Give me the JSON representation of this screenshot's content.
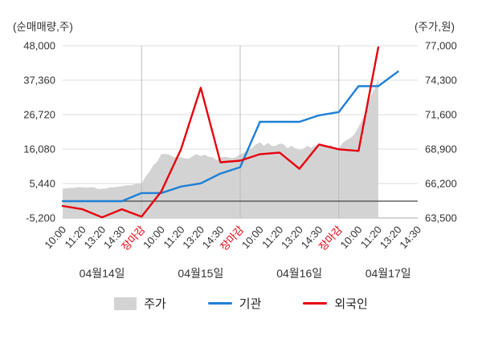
{
  "chart_data": {
    "type": "mixed",
    "title": "",
    "left_axis": {
      "label": "(순매매량,주)",
      "min": -5200,
      "max": 48000,
      "ticks": [
        48000,
        37360,
        26720,
        16080,
        5440,
        -5200
      ]
    },
    "right_axis": {
      "label": "(주가,원)",
      "min": 63500,
      "max": 77000,
      "ticks": [
        77000,
        74300,
        71600,
        68900,
        66200,
        63500
      ]
    },
    "x_labels": [
      "10:00",
      "11:20",
      "13:20",
      "14:30",
      "장마감",
      "10:00",
      "11:20",
      "13:20",
      "14:30",
      "장마감",
      "10:00",
      "11:20",
      "13:20",
      "14:30",
      "장마감",
      "10:00",
      "11:20",
      "13:20",
      "14:30"
    ],
    "closing_label": "장마감",
    "tick_color": "#333333",
    "closing_tick_color": "#e8000d",
    "grid_color": "#dddddd",
    "separator_color": "#bbbbbb",
    "zero_line_color": "#444444",
    "day_labels": [
      {
        "label": "04월14일",
        "center": 2
      },
      {
        "label": "04월15일",
        "center": 7
      },
      {
        "label": "04월16일",
        "center": 12
      },
      {
        "label": "04월17일",
        "center": 16.5
      }
    ],
    "series": [
      {
        "name": "주가",
        "type": "area",
        "axis": "right",
        "color": "#d3d3d3",
        "values": [
          65800,
          65900,
          65800,
          66000,
          66200,
          68500,
          68200,
          68400,
          68100,
          68400,
          69300,
          69200,
          68900,
          69200,
          69000,
          70500,
          74500,
          null,
          null
        ]
      },
      {
        "name": "기관",
        "type": "line",
        "axis": "left",
        "color": "#1e7fd6",
        "values": [
          0,
          0,
          0,
          0,
          2500,
          2500,
          4500,
          5500,
          8500,
          10500,
          24500,
          24500,
          24500,
          26500,
          27500,
          35500,
          35500,
          40000,
          null
        ]
      },
      {
        "name": "외국인",
        "type": "line",
        "axis": "left",
        "color": "#e8000d",
        "values": [
          -1500,
          -2500,
          -5000,
          -2500,
          -4800,
          3000,
          16000,
          35000,
          12000,
          12500,
          14500,
          15000,
          10000,
          17500,
          16000,
          15500,
          47500,
          null,
          null
        ]
      }
    ]
  }
}
